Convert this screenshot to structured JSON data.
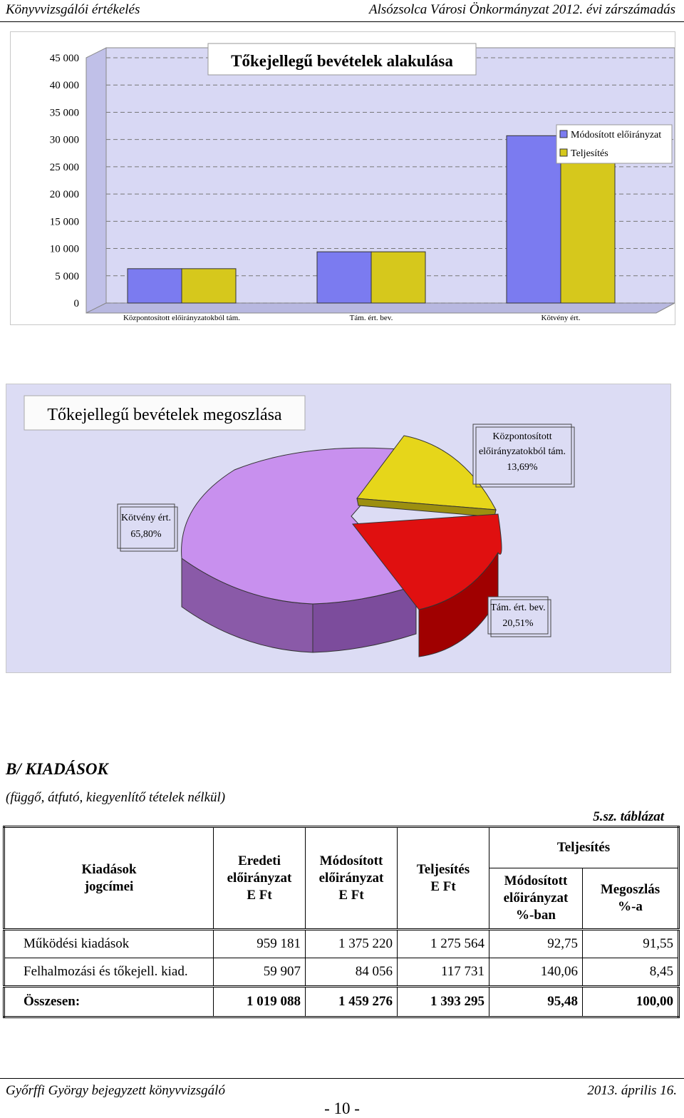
{
  "header": {
    "left": "Könyvvizsgálói értékelés",
    "right": "Alsózsolca Városi Önkormányzat 2012. évi zárszámadás"
  },
  "chart_data": [
    {
      "type": "bar",
      "title": "Tőkejellegű bevételek alakulása",
      "categories": [
        "Központosított előirányzatokból tám.",
        "Tám. ért. bev.",
        "Kötvény ért."
      ],
      "series": [
        {
          "name": "Módosított előirányzat",
          "values": [
            6300,
            9400,
            30700
          ],
          "color": "#7b7bf0"
        },
        {
          "name": "Teljesítés",
          "values": [
            6300,
            9400,
            30300
          ],
          "color": "#d6c81c"
        }
      ],
      "yticks": [
        "45 000",
        "40 000",
        "35 000",
        "30 000",
        "25 000",
        "20 000",
        "15 000",
        "10 000",
        "5 000",
        "0"
      ],
      "ylim": [
        0,
        45000
      ],
      "legend_position": "top-right",
      "grid": true
    },
    {
      "type": "pie",
      "title": "Tőkejellegű bevételek megoszlása",
      "slices": [
        {
          "name": "Központosított előirányzatokból tám.",
          "pct_label": "13,69%",
          "value": 13.69,
          "color": "#e6d61a"
        },
        {
          "name": "Tám. ért. bev.",
          "pct_label": "20,51%",
          "value": 20.51,
          "color": "#e01010"
        },
        {
          "name": "Kötvény ért.",
          "pct_label": "65,80%",
          "value": 65.8,
          "color": "#c890ee"
        }
      ],
      "label_lines": {
        "kozp": [
          "Központosított",
          "előirányzatokból tám.",
          "13,69%"
        ],
        "tam": [
          "Tám. ért. bev.",
          "20,51%"
        ],
        "kotveny": [
          "Kötvény ért.",
          "65,80%"
        ]
      }
    }
  ],
  "section": {
    "title": "B/ KIADÁSOK",
    "subtitle": "(függő, átfutó, kiegyenlítő tételek nélkül)",
    "table_ref": "5.sz. táblázat"
  },
  "table": {
    "h_jogcim": [
      "Kiadások",
      "jogcímei"
    ],
    "h_eredeti": [
      "Eredeti",
      "előirányzat",
      "E Ft"
    ],
    "h_modositott": [
      "Módosított",
      "előirányzat",
      "E Ft"
    ],
    "h_teljesites": [
      "Teljesítés",
      "E Ft"
    ],
    "h_telj_group": "Teljesítés",
    "h_mod_pct": [
      "Módosított",
      "előirányzat",
      "%-ban"
    ],
    "h_megoszlas": [
      "Megoszlás",
      "%-a"
    ],
    "rows": [
      {
        "label": "Működési kiadások",
        "eredeti": "959 181",
        "modositott": "1 375 220",
        "teljesites": "1 275 564",
        "mod_pct": "92,75",
        "megoszlas": "91,55"
      },
      {
        "label": "Felhalmozási és tőkejell. kiad.",
        "eredeti": "59 907",
        "modositott": "84 056",
        "teljesites": "117 731",
        "mod_pct": "140,06",
        "megoszlas": "8,45"
      }
    ],
    "total": {
      "label": "Összesen:",
      "eredeti": "1 019 088",
      "modositott": "1 459 276",
      "teljesites": "1 393 295",
      "mod_pct": "95,48",
      "megoszlas": "100,00"
    }
  },
  "footer": {
    "left": "Győrffi György bejegyzett könyvvizsgáló",
    "right": "2013. április 16.",
    "page": "- 10 -"
  }
}
